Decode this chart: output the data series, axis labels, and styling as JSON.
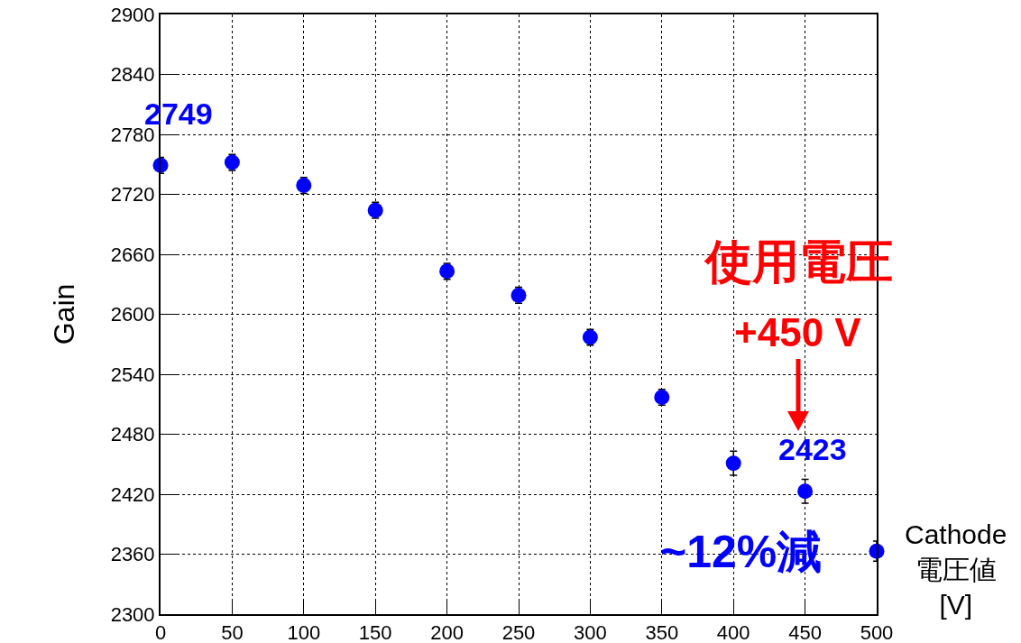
{
  "chart_data": {
    "type": "scatter",
    "xlabel": "Cathode\n電圧値\n[V]",
    "ylabel": "Gain",
    "x": [
      0,
      50,
      100,
      150,
      200,
      250,
      300,
      350,
      400,
      450,
      500
    ],
    "series": [
      {
        "color": "#0000ff",
        "values": [
          2749,
          2752,
          2729,
          2704,
          2643,
          2619,
          2577,
          2517,
          2451,
          2423,
          2363
        ],
        "errors": [
          8,
          8,
          8,
          8,
          8,
          8,
          8,
          8,
          12,
          12,
          10
        ]
      }
    ],
    "xlim": [
      0,
      500
    ],
    "xticks": [
      0,
      50,
      100,
      150,
      200,
      250,
      300,
      350,
      400,
      450,
      500
    ],
    "ylim": [
      2300,
      2900
    ],
    "yticks": [
      2300,
      2360,
      2420,
      2480,
      2540,
      2600,
      2660,
      2720,
      2780,
      2840,
      2900
    ],
    "grid": true,
    "marker": "circle",
    "annotations": [
      {
        "text": "2749",
        "x": 0,
        "y": 2749
      },
      {
        "text": "2423",
        "x": 450,
        "y": 2423
      },
      "使用電圧",
      "+450 V",
      "~12%減"
    ]
  }
}
